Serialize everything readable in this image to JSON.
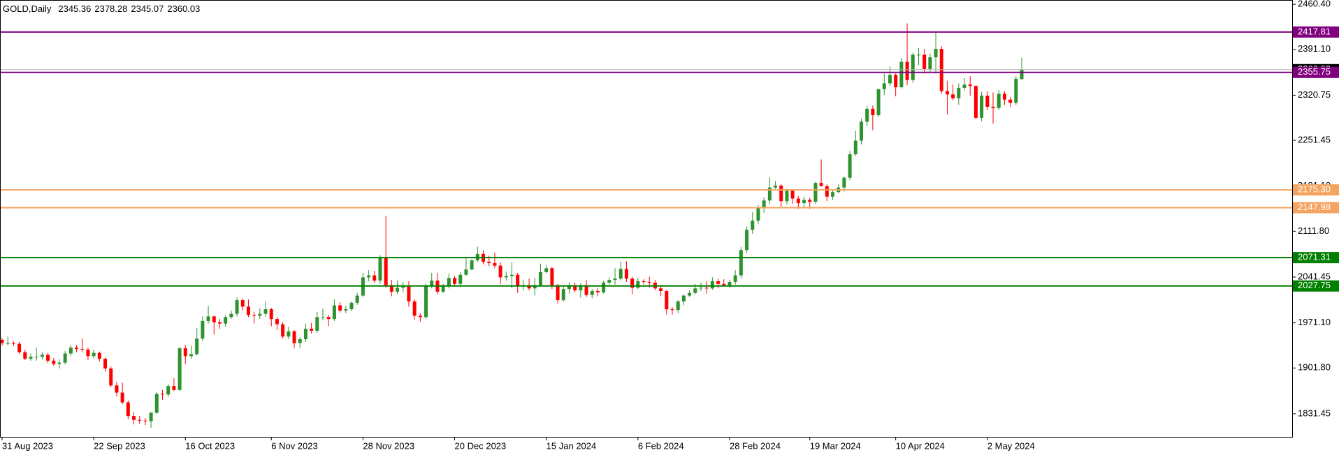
{
  "chart_data": {
    "type": "candlestick",
    "title": "GOLD,Daily",
    "last_ohlc": [
      2345.36,
      2378.28,
      2345.07,
      2360.03
    ],
    "up_color": "#2e932e",
    "down_color": "#ff0000",
    "price_line_color": "#b0b0b0",
    "ylim": [
      1796,
      2467
    ],
    "yticks": [
      {
        "value": 2460.4,
        "label": "2460.40"
      },
      {
        "value": 2391.1,
        "label": "2391.10"
      },
      2320.75,
      2251.45,
      {
        "value": 2181.1,
        "label": "2181.10"
      },
      {
        "value": 2111.8,
        "label": "2111.80"
      },
      2041.45,
      {
        "value": 1971.1,
        "label": "1971.10"
      },
      {
        "value": 1901.8,
        "label": "1901.80"
      },
      1831.45
    ],
    "levels": [
      {
        "value": 2417.81,
        "color": "#800080"
      },
      {
        "value": 2355.75,
        "color": "#800080"
      },
      {
        "value": 2175.3,
        "label": "2175.30",
        "color": "#f4a460"
      },
      {
        "value": 2147.98,
        "color": "#f4a460"
      },
      {
        "value": 2071.31,
        "color": "#008000"
      },
      {
        "value": 2027.75,
        "color": "#008000"
      }
    ],
    "categories": [
      "31 Aug 2023",
      null,
      null,
      null,
      null,
      null,
      null,
      null,
      null,
      null,
      null,
      null,
      null,
      null,
      null,
      null,
      "22 Sep 2023",
      null,
      null,
      null,
      null,
      null,
      null,
      null,
      null,
      null,
      null,
      null,
      null,
      null,
      null,
      null,
      "16 Oct 2023",
      null,
      null,
      null,
      null,
      null,
      null,
      null,
      null,
      null,
      null,
      null,
      null,
      null,
      null,
      "6 Nov 2023",
      null,
      null,
      null,
      null,
      null,
      null,
      null,
      null,
      null,
      null,
      null,
      null,
      null,
      null,
      null,
      "28 Nov 2023",
      null,
      null,
      null,
      null,
      null,
      null,
      null,
      null,
      null,
      null,
      null,
      null,
      null,
      null,
      null,
      "20 Dec 2023",
      null,
      null,
      null,
      null,
      null,
      null,
      null,
      null,
      null,
      null,
      null,
      null,
      null,
      null,
      null,
      "15 Jan 2024",
      null,
      null,
      null,
      null,
      null,
      null,
      null,
      null,
      null,
      null,
      null,
      null,
      null,
      null,
      null,
      "6 Feb 2024",
      null,
      null,
      null,
      null,
      null,
      null,
      null,
      null,
      null,
      null,
      null,
      null,
      null,
      null,
      null,
      "28 Feb 2024",
      null,
      null,
      null,
      null,
      null,
      null,
      null,
      null,
      null,
      null,
      null,
      null,
      null,
      "19 Mar 2024",
      null,
      null,
      null,
      null,
      null,
      null,
      null,
      null,
      null,
      null,
      null,
      null,
      null,
      null,
      "10 Apr 2024",
      null,
      null,
      null,
      null,
      null,
      null,
      null,
      null,
      null,
      null,
      null,
      null,
      null,
      null,
      null,
      "2 May 2024",
      null,
      null,
      null,
      null,
      null,
      null
    ],
    "ohlc": [
      [
        1945,
        1948,
        1936,
        1940
      ],
      [
        1940,
        1950,
        1936,
        1940
      ],
      [
        1940,
        1943,
        1935,
        1939
      ],
      [
        1939,
        1942,
        1923,
        1926
      ],
      [
        1926,
        1930,
        1914,
        1916
      ],
      [
        1916,
        1924,
        1913,
        1919
      ],
      [
        1919,
        1933,
        1913,
        1919
      ],
      [
        1919,
        1926,
        1915,
        1922
      ],
      [
        1922,
        1925,
        1909,
        1913
      ],
      [
        1913,
        1917,
        1905,
        1908
      ],
      [
        1908,
        1915,
        1901,
        1910
      ],
      [
        1910,
        1928,
        1907,
        1924
      ],
      [
        1924,
        1937,
        1920,
        1933
      ],
      [
        1933,
        1937,
        1926,
        1931
      ],
      [
        1931,
        1947,
        1926,
        1930
      ],
      [
        1930,
        1933,
        1914,
        1920
      ],
      [
        1920,
        1930,
        1916,
        1925
      ],
      [
        1925,
        1927,
        1912,
        1916
      ],
      [
        1916,
        1918,
        1896,
        1901
      ],
      [
        1901,
        1904,
        1872,
        1875
      ],
      [
        1875,
        1880,
        1858,
        1864
      ],
      [
        1864,
        1879,
        1846,
        1849
      ],
      [
        1849,
        1852,
        1823,
        1828
      ],
      [
        1828,
        1834,
        1815,
        1822
      ],
      [
        1822,
        1828,
        1816,
        1821
      ],
      [
        1821,
        1825,
        1814,
        1820
      ],
      [
        1820,
        1834,
        1810,
        1833
      ],
      [
        1833,
        1865,
        1831,
        1862
      ],
      [
        1862,
        1868,
        1853,
        1861
      ],
      [
        1861,
        1877,
        1858,
        1874
      ],
      [
        1874,
        1886,
        1866,
        1868
      ],
      [
        1868,
        1934,
        1867,
        1932
      ],
      [
        1932,
        1937,
        1908,
        1920
      ],
      [
        1920,
        1936,
        1916,
        1923
      ],
      [
        1923,
        1963,
        1921,
        1947
      ],
      [
        1947,
        1981,
        1943,
        1974
      ],
      [
        1974,
        1997,
        1970,
        1981
      ],
      [
        1981,
        1982,
        1953,
        1972
      ],
      [
        1972,
        1977,
        1962,
        1970
      ],
      [
        1970,
        1983,
        1965,
        1980
      ],
      [
        1980,
        1990,
        1977,
        1985
      ],
      [
        1985,
        2010,
        1981,
        2006
      ],
      [
        2006,
        2009,
        1990,
        1996
      ],
      [
        1996,
        2007,
        1980,
        1983
      ],
      [
        1983,
        1988,
        1970,
        1982
      ],
      [
        1982,
        1993,
        1977,
        1985
      ],
      [
        1985,
        2004,
        1980,
        1992
      ],
      [
        1992,
        1994,
        1966,
        1977
      ],
      [
        1977,
        1980,
        1960,
        1969
      ],
      [
        1969,
        1972,
        1947,
        1950
      ],
      [
        1950,
        1965,
        1946,
        1958
      ],
      [
        1958,
        1960,
        1932,
        1940
      ],
      [
        1940,
        1949,
        1932,
        1946
      ],
      [
        1946,
        1970,
        1942,
        1962
      ],
      [
        1962,
        1971,
        1955,
        1959
      ],
      [
        1959,
        1988,
        1956,
        1980
      ],
      [
        1980,
        1993,
        1975,
        1980
      ],
      [
        1980,
        1983,
        1966,
        1977
      ],
      [
        1977,
        2007,
        1974,
        1998
      ],
      [
        1998,
        2003,
        1987,
        1990
      ],
      [
        1990,
        1997,
        1986,
        1992
      ],
      [
        1992,
        2004,
        1989,
        2002
      ],
      [
        2002,
        2017,
        1999,
        2013
      ],
      [
        2013,
        2048,
        2011,
        2041
      ],
      [
        2041,
        2052,
        2035,
        2044
      ],
      [
        2044,
        2051,
        2032,
        2036
      ],
      [
        2036,
        2075,
        2031,
        2072
      ],
      [
        2072,
        2135,
        2025,
        2029
      ],
      [
        2029,
        2037,
        2012,
        2019
      ],
      [
        2019,
        2036,
        2016,
        2025
      ],
      [
        2025,
        2034,
        2018,
        2028
      ],
      [
        2028,
        2035,
        1996,
        2004
      ],
      [
        2004,
        2007,
        1976,
        1982
      ],
      [
        1982,
        1986,
        1973,
        1980
      ],
      [
        1980,
        2031,
        1977,
        2027
      ],
      [
        2027,
        2048,
        2024,
        2036
      ],
      [
        2036,
        2048,
        2015,
        2019
      ],
      [
        2019,
        2031,
        2017,
        2027
      ],
      [
        2027,
        2047,
        2024,
        2040
      ],
      [
        2040,
        2043,
        2027,
        2031
      ],
      [
        2031,
        2049,
        2028,
        2045
      ],
      [
        2045,
        2071,
        2043,
        2053
      ],
      [
        2053,
        2069,
        2052,
        2067
      ],
      [
        2067,
        2088,
        2065,
        2077
      ],
      [
        2077,
        2083,
        2061,
        2065
      ],
      [
        2065,
        2074,
        2058,
        2063
      ],
      [
        2063,
        2079,
        2055,
        2059
      ],
      [
        2059,
        2064,
        2031,
        2041
      ],
      [
        2041,
        2050,
        2036,
        2043
      ],
      [
        2043,
        2064,
        2024,
        2045
      ],
      [
        2045,
        2048,
        2017,
        2027
      ],
      [
        2027,
        2037,
        2021,
        2029
      ],
      [
        2029,
        2039,
        2021,
        2024
      ],
      [
        2024,
        2040,
        2013,
        2029
      ],
      [
        2029,
        2062,
        2028,
        2049
      ],
      [
        2049,
        2060,
        2047,
        2055
      ],
      [
        2055,
        2057,
        2023,
        2029
      ],
      [
        2029,
        2031,
        2001,
        2006
      ],
      [
        2006,
        2027,
        2004,
        2023
      ],
      [
        2023,
        2034,
        2016,
        2029
      ],
      [
        2029,
        2033,
        2018,
        2021
      ],
      [
        2021,
        2032,
        2010,
        2029
      ],
      [
        2029,
        2037,
        2011,
        2014
      ],
      [
        2014,
        2023,
        2009,
        2020
      ],
      [
        2020,
        2025,
        2012,
        2018
      ],
      [
        2018,
        2036,
        2016,
        2033
      ],
      [
        2033,
        2041,
        2030,
        2037
      ],
      [
        2037,
        2055,
        2030,
        2039
      ],
      [
        2039,
        2065,
        2036,
        2054
      ],
      [
        2054,
        2066,
        2034,
        2039
      ],
      [
        2039,
        2042,
        2015,
        2025
      ],
      [
        2025,
        2040,
        2023,
        2035
      ],
      [
        2035,
        2038,
        2030,
        2034
      ],
      [
        2034,
        2042,
        2025,
        2033
      ],
      [
        2033,
        2037,
        2021,
        2024
      ],
      [
        2024,
        2029,
        2012,
        2020
      ],
      [
        2020,
        2022,
        1984,
        1992
      ],
      [
        1992,
        1995,
        1984,
        1991
      ],
      [
        1991,
        2006,
        1986,
        2004
      ],
      [
        2004,
        2015,
        1998,
        2013
      ],
      [
        2013,
        2021,
        2011,
        2017
      ],
      [
        2017,
        2031,
        2015,
        2024
      ],
      [
        2024,
        2033,
        2020,
        2025
      ],
      [
        2025,
        2035,
        2016,
        2024
      ],
      [
        2024,
        2041,
        2022,
        2035
      ],
      [
        2035,
        2039,
        2024,
        2031
      ],
      [
        2031,
        2038,
        2027,
        2029
      ],
      [
        2029,
        2037,
        2025,
        2034
      ],
      [
        2034,
        2052,
        2030,
        2044
      ],
      [
        2044,
        2088,
        2039,
        2083
      ],
      [
        2083,
        2119,
        2078,
        2114
      ],
      [
        2114,
        2141,
        2108,
        2128
      ],
      [
        2128,
        2152,
        2123,
        2148
      ],
      [
        2148,
        2164,
        2140,
        2159
      ],
      [
        2159,
        2195,
        2153,
        2179
      ],
      [
        2179,
        2189,
        2177,
        2182
      ],
      [
        2182,
        2184,
        2150,
        2158
      ],
      [
        2158,
        2177,
        2153,
        2174
      ],
      [
        2174,
        2176,
        2154,
        2162
      ],
      [
        2162,
        2166,
        2146,
        2155
      ],
      [
        2155,
        2165,
        2149,
        2160
      ],
      [
        2160,
        2163,
        2146,
        2157
      ],
      [
        2157,
        2188,
        2154,
        2186
      ],
      [
        2186,
        2222,
        2181,
        2181
      ],
      [
        2181,
        2184,
        2158,
        2165
      ],
      [
        2165,
        2176,
        2160,
        2172
      ],
      [
        2172,
        2184,
        2170,
        2179
      ],
      [
        2179,
        2196,
        2173,
        2194
      ],
      [
        2194,
        2235,
        2190,
        2230
      ],
      [
        2230,
        2266,
        2228,
        2251
      ],
      [
        2251,
        2285,
        2245,
        2280
      ],
      [
        2280,
        2304,
        2273,
        2300
      ],
      [
        2300,
        2305,
        2267,
        2290
      ],
      [
        2290,
        2331,
        2287,
        2330
      ],
      [
        2330,
        2354,
        2321,
        2339
      ],
      [
        2339,
        2365,
        2335,
        2352
      ],
      [
        2352,
        2354,
        2319,
        2333
      ],
      [
        2333,
        2378,
        2331,
        2372
      ],
      [
        2372,
        2431,
        2336,
        2344
      ],
      [
        2344,
        2386,
        2340,
        2383
      ],
      [
        2383,
        2393,
        2367,
        2383
      ],
      [
        2383,
        2392,
        2354,
        2361
      ],
      [
        2361,
        2385,
        2356,
        2379
      ],
      [
        2379,
        2417,
        2354,
        2392
      ],
      [
        2392,
        2396,
        2323,
        2327
      ],
      [
        2327,
        2343,
        2291,
        2322
      ],
      [
        2322,
        2337,
        2313,
        2316
      ],
      [
        2316,
        2339,
        2306,
        2332
      ],
      [
        2332,
        2347,
        2328,
        2337
      ],
      [
        2337,
        2350,
        2320,
        2335
      ],
      [
        2335,
        2336,
        2284,
        2286
      ],
      [
        2286,
        2326,
        2281,
        2320
      ],
      [
        2320,
        2327,
        2298,
        2303
      ],
      [
        2303,
        2325,
        2277,
        2301
      ],
      [
        2301,
        2329,
        2298,
        2323
      ],
      [
        2323,
        2327,
        2306,
        2314
      ],
      [
        2314,
        2318,
        2303,
        2309
      ],
      [
        2309,
        2350,
        2306,
        2346
      ],
      [
        2345.36,
        2378.28,
        2345.07,
        2360.03
      ]
    ]
  }
}
